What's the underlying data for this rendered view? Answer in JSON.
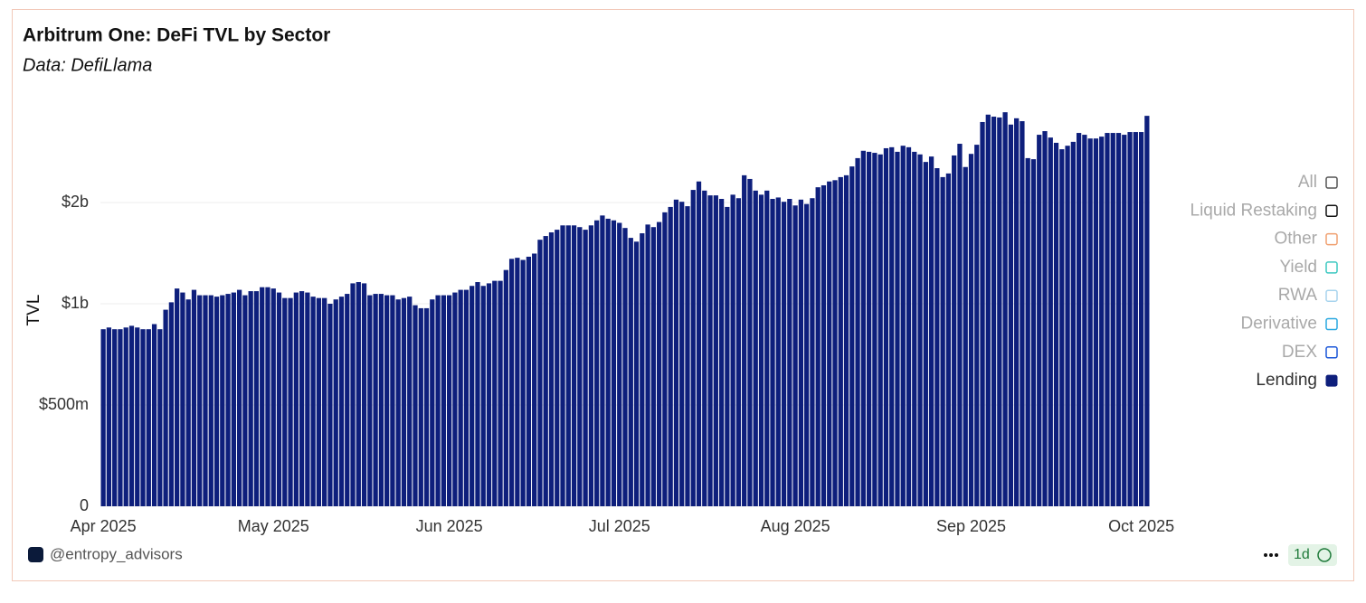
{
  "chart_data": {
    "type": "bar",
    "title": "Arbitrum One: DeFi TVL by Sector",
    "subtitle": "Data: DefiLlama",
    "y_label": "TVL",
    "yscale": "log2",
    "ylim": [
      0.25,
      4
    ],
    "yticks": [
      {
        "value": 0.25,
        "label": "0"
      },
      {
        "value": 0.5,
        "label": "$500m"
      },
      {
        "value": 1,
        "label": "$1b"
      },
      {
        "value": 2,
        "label": "$2b"
      }
    ],
    "grid": true,
    "xlim": [
      -0.5,
      184.5
    ],
    "xticks": [
      {
        "value": 0,
        "label": "Apr 2025"
      },
      {
        "value": 30,
        "label": "May 2025"
      },
      {
        "value": 61,
        "label": "Jun 2025"
      },
      {
        "value": 91,
        "label": "Jul 2025"
      },
      {
        "value": 122,
        "label": "Aug 2025"
      },
      {
        "value": 153,
        "label": "Sep 2025"
      },
      {
        "value": 183,
        "label": "Oct 2025"
      }
    ],
    "legend_position": "right",
    "legend_inactive": [
      {
        "name": "All",
        "color": "#555555"
      },
      {
        "name": "Liquid Restaking",
        "color": "#111111"
      },
      {
        "name": "Other",
        "color": "#f0a070"
      },
      {
        "name": "Yield",
        "color": "#3cc8c0"
      },
      {
        "name": "RWA",
        "color": "#a8d4ee"
      },
      {
        "name": "Derivative",
        "color": "#2aa8e0"
      },
      {
        "name": "DEX",
        "color": "#1a56d8"
      }
    ],
    "series": [
      {
        "name": "Lending",
        "color": "#0e1f7c",
        "values": [
          0.84,
          0.85,
          0.84,
          0.84,
          0.85,
          0.86,
          0.85,
          0.84,
          0.84,
          0.87,
          0.84,
          0.96,
          1.01,
          1.11,
          1.08,
          1.03,
          1.1,
          1.06,
          1.06,
          1.06,
          1.05,
          1.06,
          1.07,
          1.08,
          1.1,
          1.06,
          1.09,
          1.09,
          1.12,
          1.12,
          1.11,
          1.08,
          1.04,
          1.04,
          1.08,
          1.09,
          1.08,
          1.05,
          1.04,
          1.04,
          1.0,
          1.03,
          1.05,
          1.07,
          1.15,
          1.16,
          1.15,
          1.06,
          1.07,
          1.07,
          1.06,
          1.06,
          1.03,
          1.04,
          1.05,
          0.99,
          0.97,
          0.97,
          1.03,
          1.06,
          1.06,
          1.06,
          1.08,
          1.1,
          1.1,
          1.13,
          1.16,
          1.13,
          1.15,
          1.17,
          1.17,
          1.26,
          1.36,
          1.37,
          1.35,
          1.38,
          1.41,
          1.55,
          1.59,
          1.63,
          1.66,
          1.71,
          1.71,
          1.71,
          1.69,
          1.66,
          1.71,
          1.77,
          1.83,
          1.79,
          1.77,
          1.74,
          1.68,
          1.57,
          1.53,
          1.62,
          1.72,
          1.69,
          1.75,
          1.87,
          1.94,
          2.04,
          2.01,
          1.95,
          2.18,
          2.31,
          2.17,
          2.1,
          2.1,
          2.05,
          1.94,
          2.11,
          2.06,
          2.41,
          2.35,
          2.17,
          2.11,
          2.17,
          2.05,
          2.07,
          2.01,
          2.05,
          1.96,
          2.04,
          1.98,
          2.06,
          2.22,
          2.25,
          2.31,
          2.33,
          2.38,
          2.41,
          2.56,
          2.71,
          2.85,
          2.83,
          2.81,
          2.78,
          2.9,
          2.92,
          2.83,
          2.95,
          2.92,
          2.83,
          2.78,
          2.64,
          2.74,
          2.53,
          2.38,
          2.44,
          2.76,
          2.99,
          2.55,
          2.79,
          2.97,
          3.47,
          3.65,
          3.6,
          3.58,
          3.71,
          3.41,
          3.56,
          3.49,
          2.71,
          2.69,
          3.18,
          3.26,
          3.12,
          3.01,
          2.88,
          2.95,
          3.03,
          3.22,
          3.18,
          3.1,
          3.1,
          3.14,
          3.22,
          3.22,
          3.22,
          3.18,
          3.24,
          3.24,
          3.24,
          3.62
        ]
      }
    ]
  },
  "footer": {
    "handle": "@entropy_advisors",
    "interval": "1d"
  }
}
